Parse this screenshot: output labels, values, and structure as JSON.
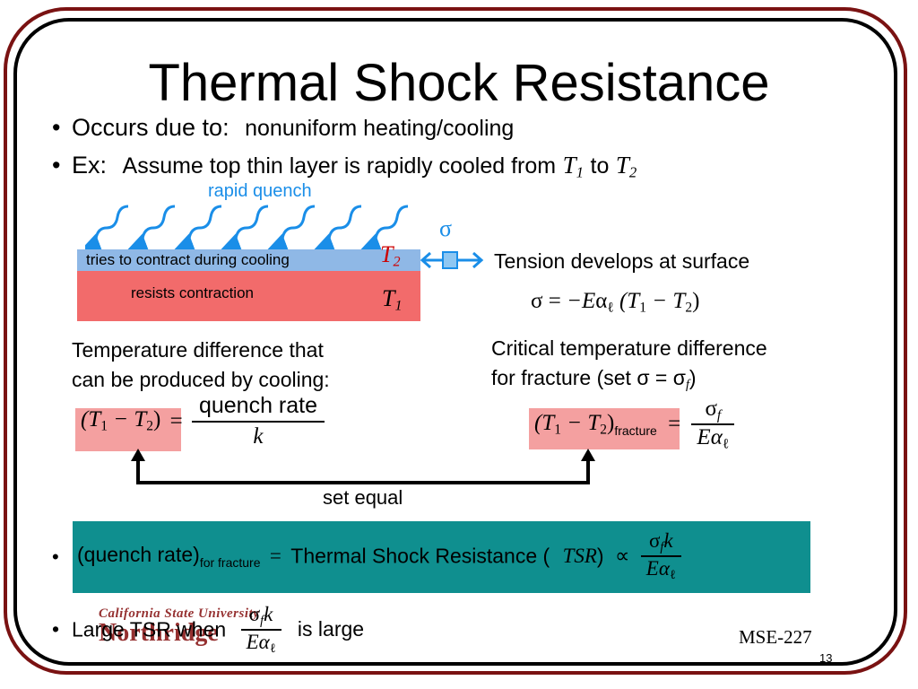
{
  "title": "Thermal Shock Resistance",
  "bullet1": {
    "label": "Occurs due to:",
    "text": "nonuniform heating/cooling"
  },
  "bullet2": {
    "label": "Ex:",
    "text": "Assume top thin layer is rapidly cooled from",
    "t1": "T",
    "t1_sub": "1",
    "to": "to",
    "t2": "T",
    "t2_sub": "2"
  },
  "diagram": {
    "quench_label": "rapid quench",
    "top_layer_text": "tries to contract during cooling",
    "bottom_layer_text": "resists contraction",
    "top_temp": "T",
    "top_temp_sub": "2",
    "bottom_temp": "T",
    "bottom_temp_sub": "1",
    "sigma": "σ",
    "tension_text": "Tension develops at surface",
    "colors": {
      "top_layer": "#8fb8e6",
      "bottom_layer": "#f26b6b",
      "quench_arrows": "#1a8ee8",
      "arrow_box": "#1a8ee8"
    }
  },
  "stress_eq": {
    "sigma": "σ",
    "eq": "=",
    "minus_E": "−E",
    "alpha": "α",
    "alpha_sub": "ℓ",
    "paren": "(T",
    "s1": "1",
    "minus": "− T",
    "s2": "2",
    "close": ")"
  },
  "left_caption": [
    "Temperature difference that",
    "can be produced by cooling:"
  ],
  "right_caption": [
    "Critical temperature difference",
    "for fracture (set σ = σ"
  ],
  "right_caption_sub": "f",
  "right_caption_close": ")",
  "left_eq": {
    "lhs": "(T",
    "s1": "1",
    "minus": " − T",
    "s2": "2",
    "close": ")",
    "eq": "=",
    "num": "quench  rate",
    "den": "k"
  },
  "right_eq": {
    "lhs": "(T",
    "s1": "1",
    "minus": " − T",
    "s2": "2",
    "close": ")",
    "sub": "fracture",
    "eq": "=",
    "num": "σ",
    "num_sub": "f",
    "den": "Eα",
    "den_sub": "ℓ"
  },
  "set_equal": "set equal",
  "tsr_eq": {
    "lhs": "(quench  rate)",
    "lhs_sub": "for  fracture",
    "eq": "=",
    "name": "Thermal Shock Resistance (",
    "tsr": "TSR",
    "close": ")",
    "prop": "∝",
    "num": "σ",
    "num_sub": "f",
    "num_k": "k",
    "den": "Eα",
    "den_sub": "ℓ",
    "bg": "#0f8f8f"
  },
  "last_bullet": {
    "text": "Large TSR when",
    "num": "σ",
    "num_sub": "f",
    "num_k": "k",
    "den": "Eα",
    "den_sub": "ℓ",
    "tail": "is large"
  },
  "logo": {
    "line1": "California State University",
    "line2": "Northridge"
  },
  "course": "MSE-227",
  "page": "13",
  "bullet_char": "•"
}
